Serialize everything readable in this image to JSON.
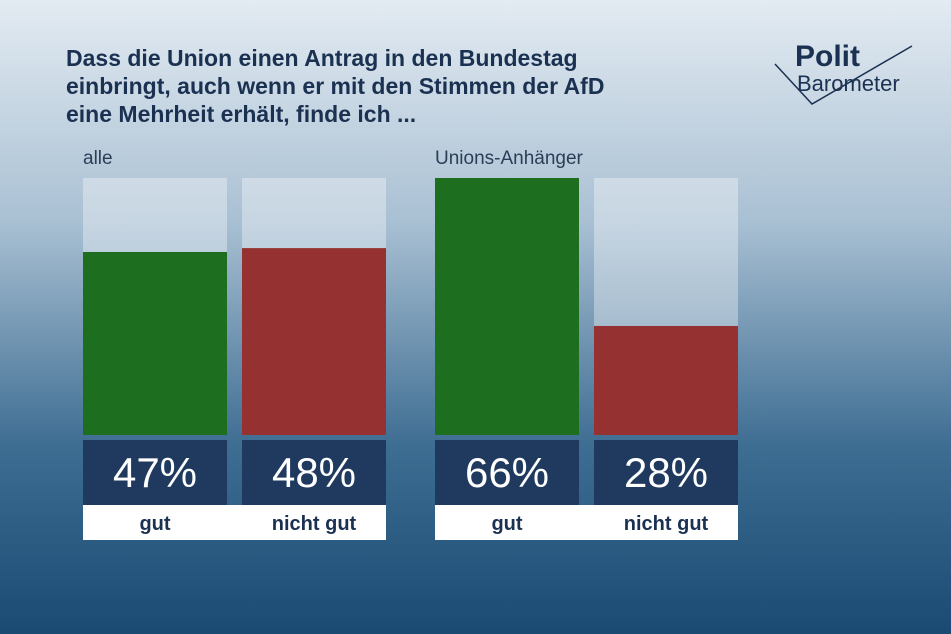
{
  "title": [
    "Dass die Union einen Antrag in den Bundestag",
    "einbringt, auch wenn er mit den Stimmen der AfD",
    "eine Mehrheit erhält, finde ich ..."
  ],
  "logo": {
    "top": "Polit",
    "bottom": "Barometer"
  },
  "chart_data": [
    {
      "type": "bar",
      "subtitle": "alle",
      "categories": [
        "gut",
        "nicht gut"
      ],
      "values": [
        47,
        48
      ],
      "value_labels": [
        "47%",
        "48%"
      ],
      "colors": [
        "#1d6e1f",
        "#963131"
      ],
      "ylim": [
        0,
        66
      ]
    },
    {
      "type": "bar",
      "subtitle": "Unions-Anhänger",
      "categories": [
        "gut",
        "nicht gut"
      ],
      "values": [
        66,
        28
      ],
      "value_labels": [
        "66%",
        "28%"
      ],
      "colors": [
        "#1d6e1f",
        "#963131"
      ],
      "ylim": [
        0,
        66
      ]
    }
  ]
}
